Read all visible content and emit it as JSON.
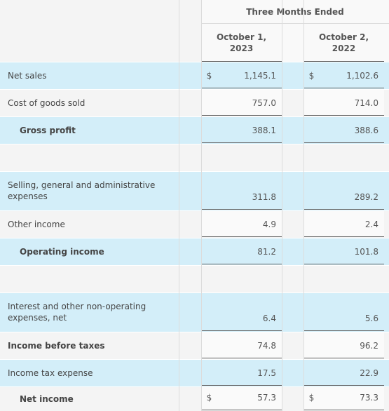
{
  "header": {
    "title": "Three Months Ended",
    "columns": [
      {
        "date": "October 1,",
        "year": "2023"
      },
      {
        "date": "October 2,",
        "year": "2022"
      }
    ]
  },
  "rows": [
    {
      "label": "Net sales",
      "highlight": true,
      "currency": [
        "$",
        "$"
      ],
      "values": [
        "1,145.1",
        "1,102.6"
      ]
    },
    {
      "label": "Cost of goods sold",
      "values": [
        "757.0",
        "714.0"
      ]
    },
    {
      "label": "Gross profit",
      "highlight": true,
      "subtotal": true,
      "values": [
        "388.1",
        "388.6"
      ]
    },
    {
      "spacer": true
    },
    {
      "label": "Selling, general and administrative expenses",
      "highlight": true,
      "values": [
        "311.8",
        "289.2"
      ]
    },
    {
      "label": "Other income",
      "values": [
        "4.9",
        "2.4"
      ]
    },
    {
      "label": "Operating income",
      "highlight": true,
      "subtotal": true,
      "values": [
        "81.2",
        "101.8"
      ]
    },
    {
      "spacer": true
    },
    {
      "label": "Interest and other non-operating expenses, net",
      "highlight": true,
      "values": [
        "6.4",
        "5.6"
      ]
    },
    {
      "label": "Income before taxes",
      "bold": true,
      "values": [
        "74.8",
        "96.2"
      ]
    },
    {
      "label": "Income tax expense",
      "highlight": true,
      "values": [
        "17.5",
        "22.9"
      ]
    },
    {
      "label": "Net income",
      "subtotal": true,
      "currency": [
        "$",
        "$"
      ],
      "values": [
        "57.3",
        "73.3"
      ]
    }
  ]
}
